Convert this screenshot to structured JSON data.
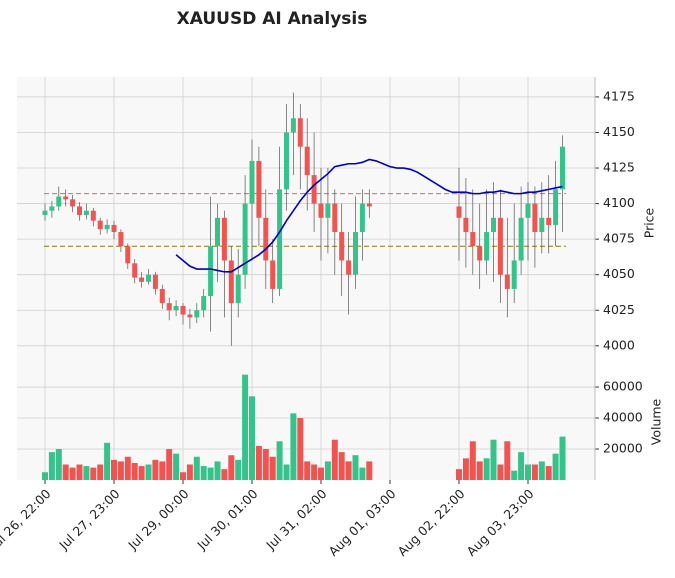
{
  "chart_data": {
    "type": "candlestick",
    "title": "XAUUSD AI Analysis",
    "categories": [
      "Jul 26, 22:00",
      null,
      null,
      null,
      null,
      null,
      null,
      null,
      null,
      null,
      "Jul 27, 23:00",
      null,
      null,
      null,
      null,
      null,
      null,
      null,
      null,
      null,
      "Jul 29, 00:00",
      null,
      null,
      null,
      null,
      null,
      null,
      null,
      null,
      null,
      "Jul 30, 01:00",
      null,
      null,
      null,
      null,
      null,
      null,
      null,
      null,
      null,
      "Jul 31, 02:00",
      null,
      null,
      null,
      null,
      null,
      null,
      null,
      null,
      null,
      "Aug 01, 03:00",
      null,
      null,
      null,
      null,
      null,
      null,
      null,
      null,
      null,
      "Aug 02, 22:00",
      null,
      null,
      null,
      null,
      null,
      null,
      null,
      null,
      null,
      "Aug 03, 23:00",
      null,
      null,
      null,
      null,
      null
    ],
    "open": [
      4092,
      4095,
      4098,
      4105,
      4103,
      4098,
      4092,
      4095,
      4088,
      4082,
      4085,
      4080,
      4070,
      4058,
      4048,
      4045,
      4050,
      4040,
      4030,
      4025,
      4028,
      4022,
      4020,
      4025,
      4035,
      4070,
      4090,
      4060,
      4030,
      4050,
      4100,
      4130,
      4090,
      4060,
      4040,
      4110,
      4150,
      4160,
      4140,
      4120,
      4100,
      4090,
      4100,
      4080,
      4060,
      4050,
      4080,
      4100,
      null,
      null,
      null,
      null,
      null,
      null,
      null,
      null,
      null,
      null,
      null,
      null,
      4098,
      4090,
      4080,
      4070,
      4060,
      4080,
      4090,
      4050,
      4040,
      4060,
      4090,
      4100,
      4080,
      4090,
      4085,
      4110
    ],
    "high": [
      4100,
      4102,
      4112,
      4110,
      4106,
      4101,
      4100,
      4097,
      4090,
      4089,
      4088,
      4082,
      4072,
      4061,
      4052,
      4054,
      4052,
      4043,
      4034,
      4032,
      4030,
      4026,
      4030,
      4040,
      4105,
      4100,
      4095,
      4070,
      4068,
      4120,
      4145,
      4140,
      4110,
      4075,
      4140,
      4170,
      4178,
      4170,
      4160,
      4150,
      4125,
      4125,
      4110,
      4100,
      4080,
      4105,
      4110,
      4110,
      null,
      null,
      null,
      null,
      null,
      null,
      null,
      null,
      null,
      null,
      null,
      null,
      4125,
      4118,
      4110,
      4100,
      4110,
      4115,
      4110,
      4090,
      4100,
      4112,
      4115,
      4112,
      4115,
      4120,
      4130,
      4148
    ],
    "low": [
      4088,
      4090,
      4095,
      4098,
      4094,
      4088,
      4089,
      4084,
      4078,
      4079,
      4075,
      4066,
      4054,
      4044,
      4041,
      4043,
      4036,
      4026,
      4018,
      4021,
      4015,
      4012,
      4016,
      4020,
      4010,
      4045,
      4020,
      4000,
      4020,
      4040,
      4060,
      4070,
      4040,
      4030,
      4035,
      4095,
      4120,
      4110,
      4095,
      4080,
      4060,
      4065,
      4050,
      4035,
      4022,
      4040,
      4060,
      4090,
      null,
      null,
      null,
      null,
      null,
      null,
      null,
      null,
      null,
      null,
      null,
      null,
      4060,
      4055,
      4050,
      4040,
      4050,
      4045,
      4030,
      4020,
      4030,
      4050,
      4060,
      4055,
      4065,
      4065,
      4070,
      4080
    ],
    "close": [
      4095,
      4098,
      4105,
      4103,
      4098,
      4092,
      4095,
      4088,
      4082,
      4085,
      4080,
      4070,
      4058,
      4048,
      4045,
      4050,
      4040,
      4030,
      4025,
      4028,
      4022,
      4020,
      4025,
      4035,
      4070,
      4090,
      4060,
      4030,
      4050,
      4100,
      4130,
      4090,
      4060,
      4040,
      4110,
      4150,
      4160,
      4140,
      4120,
      4100,
      4090,
      4100,
      4080,
      4060,
      4050,
      4080,
      4100,
      4098,
      null,
      null,
      null,
      null,
      null,
      null,
      null,
      null,
      null,
      null,
      null,
      null,
      4090,
      4080,
      4070,
      4060,
      4080,
      4090,
      4050,
      4040,
      4060,
      4090,
      4100,
      4080,
      4090,
      4085,
      4110,
      4140
    ],
    "volume": [
      5000,
      18000,
      20000,
      10000,
      8000,
      10000,
      9000,
      8000,
      10000,
      24000,
      13000,
      12000,
      15000,
      11000,
      9000,
      10000,
      13000,
      12000,
      20000,
      17000,
      5000,
      10000,
      15000,
      9000,
      8000,
      12000,
      7000,
      16000,
      13000,
      68000,
      54000,
      22000,
      20000,
      15000,
      25000,
      10000,
      43000,
      40000,
      12000,
      10000,
      8000,
      12000,
      26000,
      18000,
      12000,
      16000,
      8000,
      12000,
      null,
      null,
      null,
      null,
      null,
      null,
      null,
      null,
      null,
      null,
      null,
      null,
      7000,
      14000,
      25000,
      12000,
      14000,
      26000,
      10000,
      25000,
      6000,
      18000,
      10000,
      10000,
      12000,
      9000,
      17000,
      28000
    ],
    "moving_average": {
      "color": "#0000c8",
      "values": [
        null,
        null,
        null,
        null,
        null,
        null,
        null,
        null,
        null,
        null,
        null,
        null,
        null,
        null,
        null,
        null,
        null,
        null,
        null,
        4064,
        4060,
        4056,
        4054,
        4054,
        4054,
        4053,
        4052,
        4052,
        4055,
        4058,
        4061,
        4064,
        4068,
        4073,
        4080,
        4088,
        4095,
        4102,
        4108,
        4113,
        4117,
        4121,
        4126,
        4127,
        4128,
        4128,
        4129,
        4131,
        4130,
        4128,
        4126,
        4125,
        4125,
        4124,
        4122,
        4119,
        4116,
        4113,
        4110,
        4108,
        4108,
        4108,
        4107,
        4107,
        4108,
        4108,
        4109,
        4108,
        4107,
        4107,
        4108,
        4108,
        4109,
        4110,
        4111,
        4112
      ]
    },
    "hlines": [
      {
        "value": 4107,
        "color": "#e06666"
      },
      {
        "value": 4070,
        "color": "#808000"
      }
    ],
    "up_color": "#35c38b",
    "down_color": "#f05450",
    "ylabel": "Price",
    "ylim": [
      3983,
      4189
    ],
    "yticks": [
      4000,
      4025,
      4050,
      4075,
      4100,
      4125,
      4150,
      4175
    ],
    "y2label": "Volume",
    "y2lim": [
      0,
      71000
    ],
    "y2ticks": [
      20000,
      40000,
      60000
    ],
    "grid": true
  }
}
